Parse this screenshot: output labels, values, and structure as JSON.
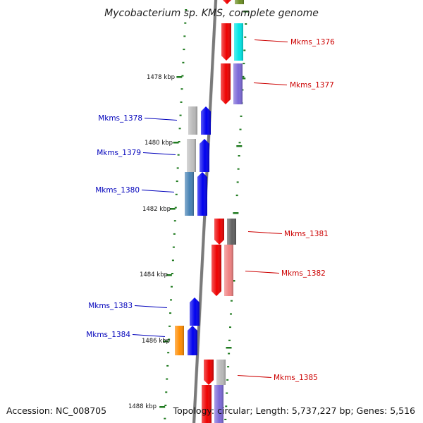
{
  "title": "Mycobacterium sp. KMS, complete genome",
  "accession": "Accession: NC_008705",
  "topology": "Topology: circular; Length: 5,737,227 bp; Genes: 5,516",
  "colors": {
    "forward_label": "#cc0000",
    "reverse_label": "#0000bb",
    "tick": "#1f7a1f",
    "backbone": "#7a7a7a"
  },
  "kbp_labels": [
    "1478 kbp",
    "1480 kbp",
    "1482 kbp",
    "1484 kbp",
    "1486 kbp",
    "1488 kbp"
  ],
  "genes": [
    {
      "name": "Mkms_1376",
      "strand": "forward",
      "color": "#ee0000",
      "partner_color": "#00e5e5"
    },
    {
      "name": "Mkms_1377",
      "strand": "forward",
      "color": "#ee0000",
      "partner_color": "#7b68d8"
    },
    {
      "name": "Mkms_1378",
      "strand": "reverse",
      "color": "#0000ee",
      "partner_color": "#b8b8b8"
    },
    {
      "name": "Mkms_1379",
      "strand": "reverse",
      "color": "#0000ee",
      "partner_color": "#c0c0c0"
    },
    {
      "name": "Mkms_1380",
      "strand": "reverse",
      "color": "#0000ee",
      "partner_color": "#4682b4"
    },
    {
      "name": "Mkms_1381",
      "strand": "forward",
      "color": "#ee0000",
      "partner_color": "#606060"
    },
    {
      "name": "Mkms_1382",
      "strand": "forward",
      "color": "#ee0000",
      "partner_color": "#f08080"
    },
    {
      "name": "Mkms_1383",
      "strand": "reverse",
      "color": "#0000ee",
      "partner_color": ""
    },
    {
      "name": "Mkms_1384",
      "strand": "reverse",
      "color": "#0000ee",
      "partner_color": "#ff8c00"
    },
    {
      "name": "Mkms_1385",
      "strand": "forward",
      "color": "#ee0000",
      "partner_color": "#b8b8b8"
    }
  ]
}
